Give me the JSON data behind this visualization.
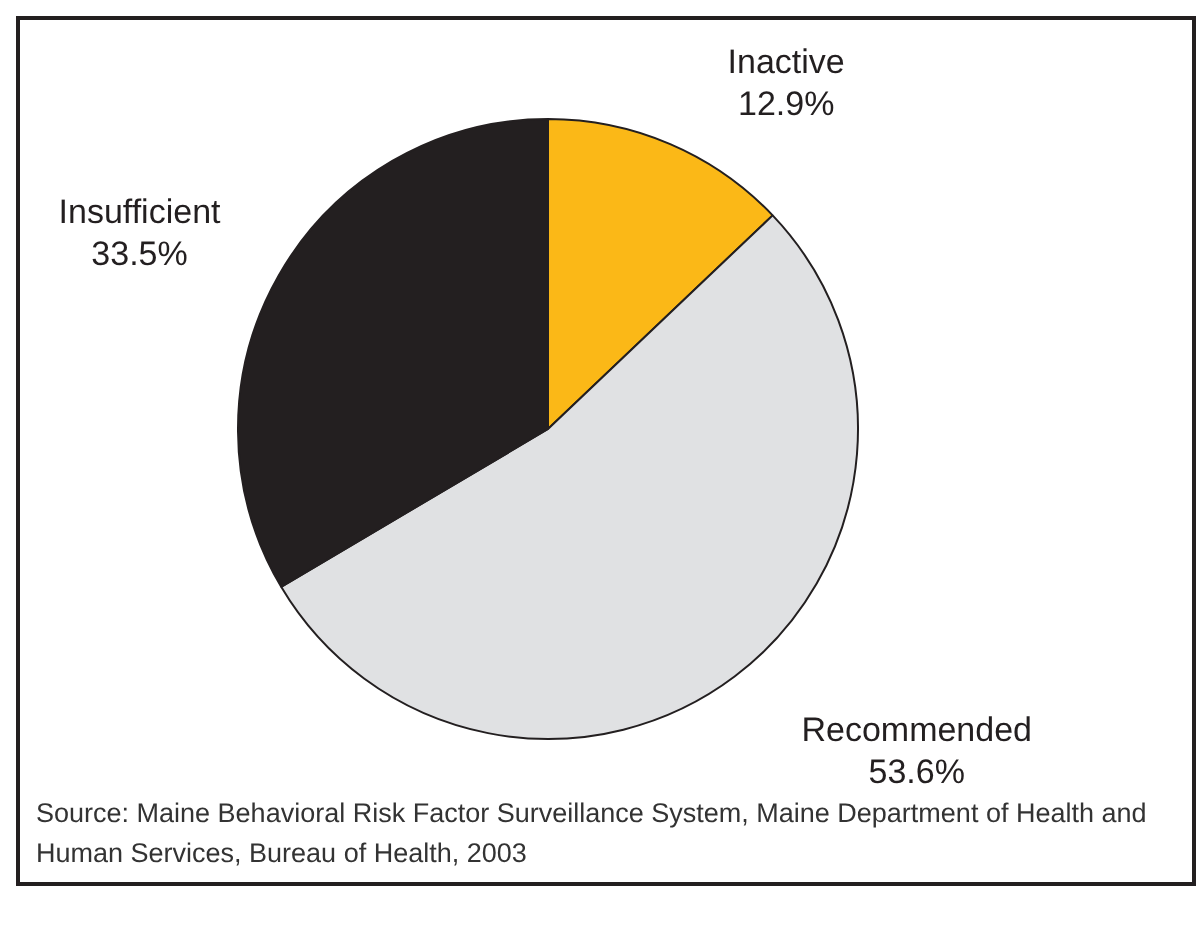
{
  "chart_data": {
    "type": "pie",
    "categories": [
      "Inactive",
      "Recommended",
      "Insufficient"
    ],
    "values": [
      12.9,
      53.6,
      33.5
    ],
    "colors": [
      "#fbb817",
      "#e0e1e3",
      "#231f20"
    ],
    "value_labels": [
      "12.9%",
      "53.6%",
      "33.5%"
    ],
    "legend": false,
    "annotations": [
      "Source: Maine Behavioral Risk Factor Surveillance System, Maine Department of Health and Human Services, Bureau of Health, 2003"
    ]
  }
}
